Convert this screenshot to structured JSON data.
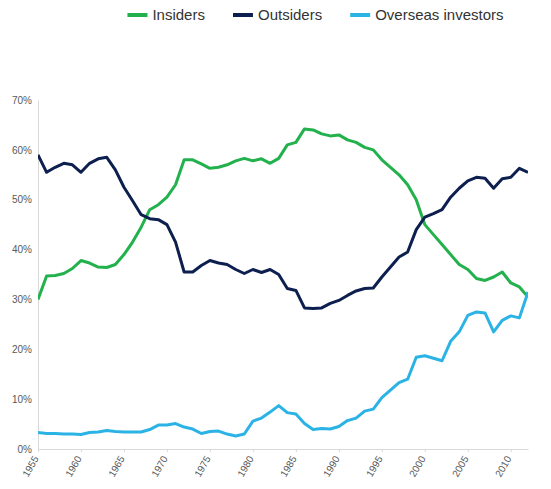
{
  "chart_data": {
    "type": "line",
    "x": [
      1955,
      1956,
      1957,
      1958,
      1959,
      1960,
      1961,
      1962,
      1963,
      1964,
      1965,
      1966,
      1967,
      1968,
      1969,
      1970,
      1971,
      1972,
      1973,
      1974,
      1975,
      1976,
      1977,
      1978,
      1979,
      1980,
      1981,
      1982,
      1983,
      1984,
      1985,
      1986,
      1987,
      1988,
      1989,
      1990,
      1991,
      1992,
      1993,
      1994,
      1995,
      1996,
      1997,
      1998,
      1999,
      2000,
      2001,
      2002,
      2003,
      2004,
      2005,
      2006,
      2007,
      2008,
      2009,
      2010,
      2011,
      2012
    ],
    "xlim": [
      1955,
      2012
    ],
    "xticks": [
      1955,
      1960,
      1965,
      1970,
      1975,
      1980,
      1985,
      1990,
      1995,
      2000,
      2005,
      2010
    ],
    "ylim": [
      0,
      70
    ],
    "yticks": [
      {
        "value": 0,
        "label": "0%"
      },
      {
        "value": 10,
        "label": "10%"
      },
      {
        "value": 20,
        "label": "20%"
      },
      {
        "value": 30,
        "label": "30%"
      },
      {
        "value": 40,
        "label": "40%"
      },
      {
        "value": 50,
        "label": "50%"
      },
      {
        "value": 60,
        "label": "60%"
      },
      {
        "value": 70,
        "label": "70%"
      }
    ],
    "grid": false,
    "legend": "top",
    "series": [
      {
        "name": "Insiders",
        "color": "#22b14c",
        "values": [
          30,
          34.7,
          34.8,
          35.2,
          36.2,
          37.8,
          37.3,
          36.5,
          36.4,
          37,
          39,
          41.5,
          44.5,
          48,
          49,
          50.5,
          53,
          58,
          58,
          57.2,
          56.3,
          56.5,
          57,
          57.8,
          58.3,
          57.8,
          58.2,
          57.3,
          58.3,
          61,
          61.5,
          64.2,
          64,
          63.2,
          62.8,
          63,
          62,
          61.5,
          60.5,
          60,
          58,
          56.5,
          55,
          53,
          50,
          45,
          43,
          41,
          39,
          37,
          36,
          34.2,
          33.8,
          34.5,
          35.5,
          33.3,
          32.5,
          30.5
        ]
      },
      {
        "name": "Outsiders",
        "color": "#0d1f4f",
        "values": [
          59,
          55.5,
          56.5,
          57.3,
          57,
          55.5,
          57.3,
          58.2,
          58.5,
          56,
          52.5,
          49.8,
          47,
          46.2,
          46,
          45,
          41.5,
          35.5,
          35.5,
          36.8,
          37.8,
          37.3,
          37,
          36,
          35.2,
          36,
          35.4,
          36,
          35,
          32.2,
          31.8,
          28.3,
          28.2,
          28.3,
          29.2,
          29.8,
          30.8,
          31.7,
          32.2,
          32.3,
          34.5,
          36.5,
          38.5,
          39.5,
          44,
          46.5,
          47.2,
          48,
          50.5,
          52.3,
          53.8,
          54.5,
          54.3,
          52.3,
          54.2,
          54.5,
          56.3,
          55.5
        ]
      },
      {
        "name": "Overseas investors",
        "color": "#2bb3e6",
        "values": [
          3.3,
          3.1,
          3.1,
          3.0,
          3.0,
          2.9,
          3.3,
          3.4,
          3.7,
          3.5,
          3.4,
          3.4,
          3.4,
          3.9,
          4.8,
          4.8,
          5.1,
          4.4,
          4.0,
          3.1,
          3.5,
          3.6,
          3.0,
          2.6,
          3.0,
          5.6,
          6.2,
          7.4,
          8.7,
          7.3,
          7.0,
          5.1,
          3.9,
          4.1,
          4.0,
          4.5,
          5.7,
          6.2,
          7.6,
          8.0,
          10.3,
          11.8,
          13.3,
          14.0,
          18.4,
          18.7,
          18.2,
          17.7,
          21.6,
          23.5,
          26.8,
          27.5,
          27.3,
          23.5,
          25.8,
          26.7,
          26.3,
          31.5
        ]
      }
    ]
  }
}
